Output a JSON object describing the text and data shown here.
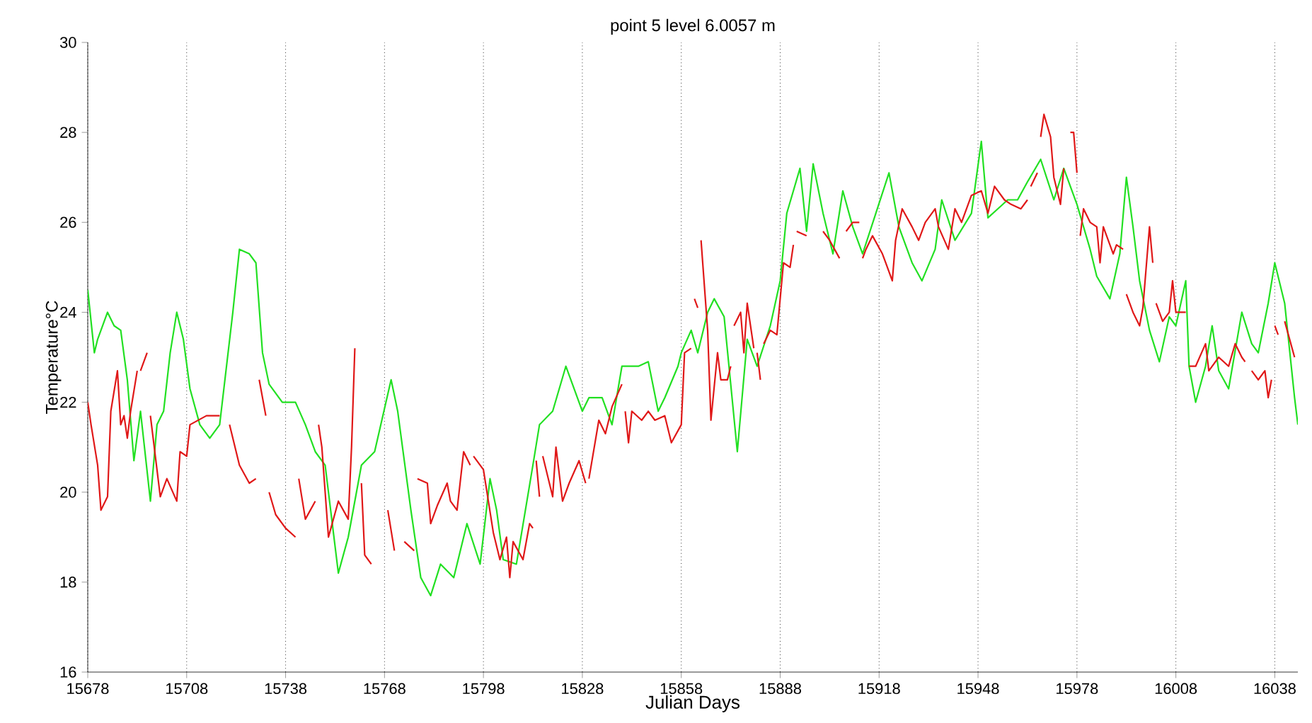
{
  "chart_data": {
    "type": "line",
    "title": "point 5 level 6.0057 m",
    "xlabel": "Julian Days",
    "ylabel": "Temperature°C",
    "xlim": [
      15678,
      16045
    ],
    "xticks": [
      15678,
      15708,
      15738,
      15768,
      15798,
      15828,
      15858,
      15888,
      15918,
      15948,
      15978,
      16008,
      16038
    ],
    "ylim": [
      16,
      30
    ],
    "yticks": [
      16,
      18,
      20,
      22,
      24,
      26,
      28,
      30
    ],
    "grid": "x",
    "legend": false,
    "marker": "none",
    "line_style": "solid",
    "series": [
      {
        "color": "#22e022",
        "x": [
          15678,
          15680,
          15681,
          15684,
          15686,
          15688,
          15690,
          15692,
          15694,
          15697,
          15699,
          15701,
          15703,
          15705,
          15707,
          15709,
          15712,
          15715,
          15718,
          15722,
          15724,
          15727,
          15729,
          15731,
          15733,
          15737,
          15741,
          15744,
          15747,
          15750,
          15754,
          15757,
          15761,
          15765,
          15770,
          15772,
          15776,
          15779,
          15782,
          15785,
          15789,
          15793,
          15797,
          15800,
          15802,
          15804,
          15808,
          15813,
          15815,
          15819,
          15823,
          15828,
          15830,
          15834,
          15837,
          15840,
          15845,
          15848,
          15851,
          15853,
          15857,
          15858,
          15861,
          15863,
          15866,
          15868,
          15871,
          15875,
          15878,
          15881,
          15885,
          15888,
          15890,
          15894,
          15896,
          15898,
          15901,
          15904,
          15907,
          15910,
          15913,
          15917,
          15921,
          15924,
          15928,
          15931,
          15935,
          15937,
          15941,
          15946,
          15949,
          15951,
          15954,
          15957,
          15960,
          15963,
          15967,
          15971,
          15974,
          15978,
          15982,
          15984,
          15988,
          15991,
          15993,
          15995,
          15997,
          16000,
          16003,
          16006,
          16008,
          16011,
          16012,
          16014,
          16017,
          16019,
          16021,
          16024,
          16028,
          16031,
          16033,
          16036,
          16038,
          16041,
          16044,
          16045
        ],
        "values": [
          24.5,
          23.1,
          23.4,
          24.0,
          23.7,
          23.6,
          22.5,
          20.7,
          21.8,
          19.8,
          21.5,
          21.8,
          23.1,
          24.0,
          23.4,
          22.3,
          21.5,
          21.2,
          21.5,
          24.0,
          25.4,
          25.3,
          25.1,
          23.1,
          22.4,
          22.0,
          22.0,
          21.5,
          20.9,
          20.6,
          18.2,
          19.0,
          20.6,
          20.9,
          22.5,
          21.8,
          19.6,
          18.1,
          17.7,
          18.4,
          18.1,
          19.3,
          18.4,
          20.3,
          19.6,
          18.5,
          18.4,
          20.6,
          21.5,
          21.8,
          22.8,
          21.8,
          22.1,
          22.1,
          21.5,
          22.8,
          22.8,
          22.9,
          21.8,
          22.1,
          22.8,
          23.1,
          23.6,
          23.1,
          24.0,
          24.3,
          23.9,
          20.9,
          23.4,
          22.8,
          23.7,
          24.7,
          26.2,
          27.2,
          25.8,
          27.3,
          26.2,
          25.3,
          26.7,
          25.9,
          25.3,
          26.2,
          27.1,
          25.9,
          25.1,
          24.7,
          25.4,
          26.5,
          25.6,
          26.2,
          27.8,
          26.1,
          26.3,
          26.5,
          26.5,
          26.9,
          27.4,
          26.5,
          27.2,
          26.4,
          25.4,
          24.8,
          24.3,
          25.3,
          27.0,
          25.9,
          24.7,
          23.6,
          22.9,
          23.9,
          23.7,
          24.7,
          22.8,
          22.0,
          22.8,
          23.7,
          22.7,
          22.3,
          24.0,
          23.3,
          23.1,
          24.2,
          25.1,
          24.2,
          22.1,
          21.5
        ]
      },
      {
        "color": "#e01818",
        "x": [
          15678,
          15679,
          15681,
          15682,
          15684,
          15685,
          15687,
          15688,
          15689,
          15690,
          15691,
          15693,
          null,
          15694,
          15696,
          null,
          15697,
          15700,
          15702,
          15705,
          15706,
          15708,
          15709,
          15714,
          15718,
          null,
          15721,
          15724,
          15727,
          15729,
          null,
          15730,
          15732,
          null,
          15733,
          15735,
          15738,
          15741,
          null,
          15742,
          15744,
          15747,
          null,
          15748,
          15749,
          15751,
          15754,
          15757,
          15758,
          15759,
          null,
          15761,
          15762,
          15764,
          null,
          15769,
          15771,
          null,
          15774,
          15777,
          null,
          15778,
          15781,
          15782,
          15784,
          15787,
          15788,
          15790,
          15792,
          15794,
          null,
          15795,
          15798,
          15801,
          15803,
          15805,
          15806,
          15807,
          15810,
          15812,
          15813,
          null,
          15814,
          15815,
          null,
          15816,
          15819,
          15820,
          15822,
          15824,
          15827,
          15829,
          null,
          15830,
          15833,
          15835,
          15837,
          15840,
          null,
          15841,
          15842,
          15843,
          15846,
          15848,
          15850,
          15853,
          15855,
          15858,
          15859,
          15861,
          null,
          15862,
          15863,
          null,
          15864,
          15866,
          15867,
          15869,
          15870,
          15872,
          15873,
          null,
          15874,
          15876,
          15877,
          15878,
          15880,
          null,
          15881,
          15882,
          null,
          15883,
          15885,
          15887,
          15889,
          15891,
          15892,
          null,
          15893,
          15896,
          null,
          15901,
          15903,
          15906,
          null,
          15908,
          15910,
          15912,
          null,
          15913,
          15914,
          15916,
          15919,
          15920,
          15922,
          15923,
          15925,
          15928,
          15930,
          15932,
          15935,
          15936,
          15939,
          15941,
          15943,
          15946,
          15949,
          15951,
          15953,
          15956,
          15958,
          15961,
          15963,
          null,
          15964,
          15966,
          null,
          15967,
          15968,
          15970,
          15971,
          15973,
          15974,
          null,
          15976,
          15977,
          15978,
          null,
          15979,
          15980,
          15982,
          15984,
          15985,
          15986,
          15989,
          15990,
          15992,
          null,
          15993,
          15995,
          15997,
          15998,
          16000,
          16001,
          null,
          16002,
          16004,
          16006,
          16007,
          16008,
          16011,
          null,
          16012,
          16014,
          16017,
          16018,
          16021,
          16024,
          16026,
          16028,
          16029,
          null,
          16031,
          16033,
          16035,
          16036,
          16037,
          null,
          16038,
          16039,
          null,
          16041,
          16044
        ],
        "values": [
          22.0,
          21.5,
          20.6,
          19.6,
          19.9,
          21.8,
          22.7,
          21.5,
          21.7,
          21.2,
          21.8,
          22.7,
          null,
          22.7,
          23.1,
          null,
          21.7,
          19.9,
          20.3,
          19.8,
          20.9,
          20.8,
          21.5,
          21.7,
          21.7,
          null,
          21.5,
          20.6,
          20.2,
          20.3,
          null,
          22.5,
          21.7,
          null,
          20.0,
          19.5,
          19.2,
          19.0,
          null,
          20.3,
          19.4,
          19.8,
          null,
          21.5,
          21.0,
          19.0,
          19.8,
          19.4,
          21.0,
          23.2,
          null,
          20.2,
          18.6,
          18.4,
          null,
          19.6,
          18.7,
          null,
          18.9,
          18.7,
          null,
          20.3,
          20.2,
          19.3,
          19.7,
          20.2,
          19.8,
          19.6,
          20.9,
          20.6,
          null,
          20.8,
          20.5,
          19.1,
          18.5,
          19.0,
          18.1,
          18.9,
          18.5,
          19.3,
          19.2,
          null,
          20.7,
          19.9,
          null,
          20.8,
          19.9,
          21.0,
          19.8,
          20.2,
          20.7,
          20.2,
          null,
          20.3,
          21.6,
          21.3,
          21.9,
          22.4,
          null,
          21.8,
          21.1,
          21.8,
          21.6,
          21.8,
          21.6,
          21.7,
          21.1,
          21.5,
          23.1,
          23.2,
          null,
          24.3,
          24.1,
          null,
          25.6,
          23.6,
          21.6,
          23.1,
          22.5,
          22.5,
          22.8,
          null,
          23.7,
          24.0,
          23.1,
          24.2,
          23.2,
          null,
          23.1,
          22.5,
          null,
          23.3,
          23.6,
          23.5,
          25.1,
          25.0,
          25.5,
          null,
          25.8,
          25.7,
          null,
          25.8,
          25.6,
          25.2,
          null,
          25.8,
          26.0,
          26.0,
          null,
          25.2,
          25.4,
          25.7,
          25.3,
          25.1,
          24.7,
          25.6,
          26.3,
          25.9,
          25.6,
          26.0,
          26.3,
          25.9,
          25.4,
          26.3,
          26.0,
          26.6,
          26.7,
          26.2,
          26.8,
          26.5,
          26.4,
          26.3,
          26.5,
          null,
          26.8,
          27.1,
          null,
          27.9,
          28.4,
          27.9,
          27.0,
          26.4,
          27.2,
          null,
          28.0,
          28.0,
          27.1,
          null,
          25.7,
          26.3,
          26.0,
          25.9,
          25.1,
          25.9,
          25.3,
          25.5,
          25.4,
          null,
          24.4,
          24.0,
          23.7,
          24.1,
          25.9,
          25.1,
          null,
          24.2,
          23.8,
          24.0,
          24.7,
          24.0,
          24.0,
          null,
          22.8,
          22.8,
          23.3,
          22.7,
          23.0,
          22.8,
          23.3,
          23.0,
          22.9,
          null,
          22.7,
          22.5,
          22.7,
          22.1,
          22.5,
          null,
          23.7,
          23.5,
          null,
          23.8,
          23.0
        ]
      }
    ]
  }
}
